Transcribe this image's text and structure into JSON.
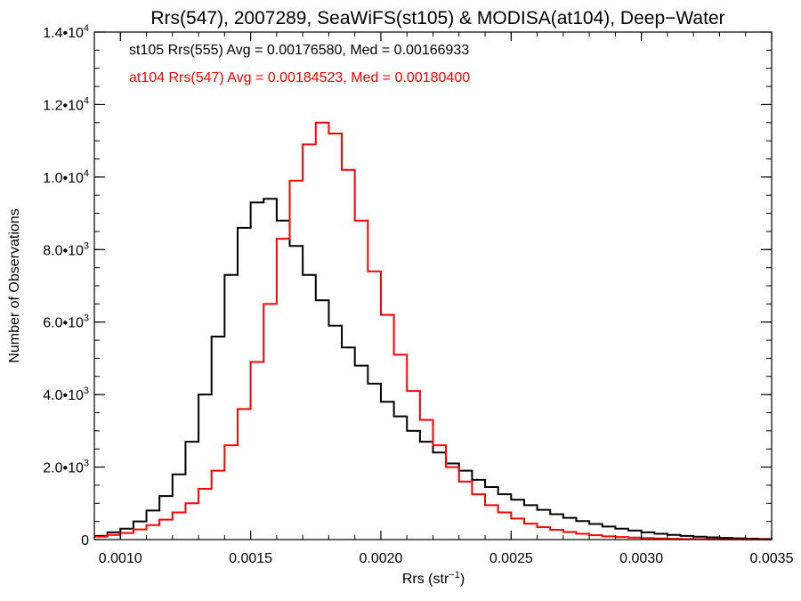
{
  "chart_data": {
    "type": "line",
    "title": "Rrs(547), 2007289, SeaWiFS(st105) & MODISA(at104), Deep−Water",
    "xlabel": "Rrs (str",
    "xlabel_sup": "−1",
    "xlabel_end": ")",
    "ylabel": "Number of Observations",
    "xlim": [
      0.0009,
      0.0035
    ],
    "ylim": [
      0,
      14000
    ],
    "step_style": "histogram",
    "grid": false,
    "x_ticks": [
      {
        "value": 0.001,
        "label": "0.0010"
      },
      {
        "value": 0.0015,
        "label": "0.0015"
      },
      {
        "value": 0.002,
        "label": "0.0020"
      },
      {
        "value": 0.0025,
        "label": "0.0025"
      },
      {
        "value": 0.003,
        "label": "0.0030"
      },
      {
        "value": 0.0035,
        "label": "0.0035"
      }
    ],
    "y_ticks": [
      {
        "value": 0,
        "mant": "0",
        "exp": ""
      },
      {
        "value": 2000,
        "mant": "2.0•10",
        "exp": "3"
      },
      {
        "value": 4000,
        "mant": "4.0•10",
        "exp": "3"
      },
      {
        "value": 6000,
        "mant": "6.0•10",
        "exp": "3"
      },
      {
        "value": 8000,
        "mant": "8.0•10",
        "exp": "3"
      },
      {
        "value": 10000,
        "mant": "1.0•10",
        "exp": "4"
      },
      {
        "value": 12000,
        "mant": "1.2•10",
        "exp": "4"
      },
      {
        "value": 14000,
        "mant": "1.4•10",
        "exp": "4"
      }
    ],
    "annotations": [
      {
        "text": "st105 Rrs(555) Avg = 0.00176580, Med = 0.00166933",
        "color": "#000000"
      },
      {
        "text": "at104 Rrs(547) Avg = 0.00184523, Med = 0.00180400",
        "color": "#ff0000"
      }
    ],
    "series": [
      {
        "color": "#000000",
        "x": [
          0.0009,
          0.00095,
          0.001,
          0.00105,
          0.0011,
          0.00115,
          0.0012,
          0.00125,
          0.0013,
          0.00135,
          0.0014,
          0.00145,
          0.0015,
          0.00155,
          0.0016,
          0.00165,
          0.0017,
          0.00175,
          0.0018,
          0.00185,
          0.0019,
          0.00195,
          0.002,
          0.00205,
          0.0021,
          0.00215,
          0.0022,
          0.00225,
          0.0023,
          0.00235,
          0.0024,
          0.00245,
          0.0025,
          0.00255,
          0.0026,
          0.00265,
          0.0027,
          0.00275,
          0.0028,
          0.00285,
          0.0029,
          0.00295,
          0.003,
          0.00305,
          0.0031,
          0.00315,
          0.0032,
          0.00325,
          0.0033,
          0.00335,
          0.0034,
          0.00345,
          0.0035
        ],
        "y": [
          100,
          200,
          300,
          500,
          800,
          1200,
          1800,
          2700,
          4000,
          5600,
          7300,
          8600,
          9300,
          9400,
          8800,
          8100,
          7300,
          6600,
          5900,
          5300,
          4800,
          4300,
          3800,
          3400,
          3000,
          2700,
          2400,
          2100,
          1900,
          1650,
          1450,
          1250,
          1100,
          950,
          820,
          700,
          600,
          510,
          430,
          360,
          300,
          250,
          200,
          160,
          130,
          100,
          80,
          60,
          45,
          35,
          25,
          15,
          10
        ]
      },
      {
        "color": "#ff0000",
        "x": [
          0.0009,
          0.00095,
          0.001,
          0.00105,
          0.0011,
          0.00115,
          0.0012,
          0.00125,
          0.0013,
          0.00135,
          0.0014,
          0.00145,
          0.0015,
          0.00155,
          0.0016,
          0.00165,
          0.0017,
          0.00175,
          0.0018,
          0.00185,
          0.0019,
          0.00195,
          0.002,
          0.00205,
          0.0021,
          0.00215,
          0.0022,
          0.00225,
          0.0023,
          0.00235,
          0.0024,
          0.00245,
          0.0025,
          0.00255,
          0.0026,
          0.00265,
          0.0027,
          0.00275,
          0.0028,
          0.00285,
          0.0029,
          0.00295,
          0.003,
          0.00305,
          0.0031,
          0.00315,
          0.0032,
          0.00325,
          0.0033,
          0.00335,
          0.0034,
          0.00345,
          0.0035
        ],
        "y": [
          80,
          130,
          180,
          280,
          400,
          550,
          750,
          1000,
          1400,
          1900,
          2600,
          3600,
          4900,
          6500,
          8300,
          9900,
          10900,
          11500,
          11200,
          10200,
          8800,
          7400,
          6200,
          5100,
          4100,
          3300,
          2600,
          2000,
          1600,
          1250,
          950,
          750,
          580,
          440,
          340,
          270,
          210,
          160,
          120,
          90,
          70,
          55,
          40,
          30,
          22,
          16,
          12,
          9,
          7,
          5,
          4,
          3,
          2
        ]
      }
    ]
  }
}
